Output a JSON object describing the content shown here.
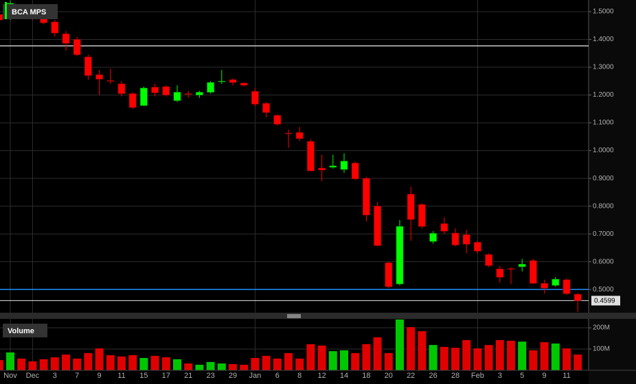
{
  "chart_data": {
    "type": "candlestick",
    "title": "BCA MPS",
    "categories": [
      null,
      "Nov",
      null,
      "Dec",
      null,
      "3",
      null,
      "7",
      null,
      "9",
      null,
      "11",
      null,
      "15",
      null,
      "17",
      null,
      "21",
      null,
      "23",
      null,
      "29",
      null,
      "Jan",
      null,
      "6",
      null,
      "8",
      null,
      "12",
      null,
      "14",
      null,
      "18",
      null,
      "20",
      null,
      "22",
      null,
      "26",
      null,
      "28",
      null,
      "Feb",
      null,
      "3",
      null,
      "5",
      null,
      "9",
      null,
      "11",
      null
    ],
    "open": [
      1.49,
      1.48,
      1.5,
      1.49,
      1.49,
      1.463,
      1.42,
      1.4,
      1.337,
      1.273,
      1.252,
      1.24,
      1.205,
      1.162,
      1.228,
      1.23,
      1.18,
      1.205,
      1.2,
      1.21,
      1.25,
      1.255,
      1.243,
      1.213,
      1.17,
      1.127,
      1.063,
      1.065,
      1.033,
      0.937,
      0.94,
      0.932,
      0.955,
      0.9,
      0.8,
      0.596,
      0.52,
      0.843,
      0.806,
      0.673,
      0.737,
      0.703,
      0.697,
      0.67,
      0.626,
      0.574,
      0.575,
      0.582,
      0.604,
      0.522,
      0.515,
      0.535,
      0.483
    ],
    "high": [
      1.5,
      1.54,
      1.51,
      1.5,
      1.5,
      1.47,
      1.43,
      1.41,
      1.345,
      1.29,
      1.295,
      1.25,
      1.21,
      1.23,
      1.24,
      1.235,
      1.235,
      1.215,
      1.215,
      1.25,
      1.29,
      1.26,
      1.245,
      1.225,
      1.175,
      1.13,
      1.075,
      1.085,
      1.04,
      0.985,
      0.985,
      0.99,
      0.96,
      0.905,
      0.815,
      0.6,
      0.75,
      0.87,
      0.81,
      0.71,
      0.76,
      0.72,
      0.715,
      0.675,
      0.63,
      0.585,
      0.58,
      0.61,
      0.61,
      0.535,
      0.545,
      0.54,
      0.487
    ],
    "low": [
      1.46,
      1.47,
      1.48,
      1.47,
      1.455,
      1.41,
      1.36,
      1.34,
      1.255,
      1.2,
      1.24,
      1.195,
      1.15,
      1.16,
      1.195,
      1.195,
      1.175,
      1.19,
      1.19,
      1.205,
      1.24,
      1.235,
      1.23,
      1.16,
      1.12,
      1.09,
      1.01,
      1.035,
      0.925,
      0.89,
      0.935,
      0.92,
      0.895,
      0.745,
      0.655,
      0.505,
      0.515,
      0.675,
      0.72,
      0.665,
      0.7,
      0.655,
      0.63,
      0.63,
      0.58,
      0.525,
      0.52,
      0.565,
      0.52,
      0.485,
      0.51,
      0.48,
      0.42
    ],
    "close": [
      1.47,
      1.53,
      1.49,
      1.48,
      1.46,
      1.423,
      1.386,
      1.345,
      1.27,
      1.257,
      1.25,
      1.205,
      1.155,
      1.225,
      1.208,
      1.2,
      1.21,
      1.203,
      1.21,
      1.245,
      1.25,
      1.245,
      1.235,
      1.167,
      1.137,
      1.095,
      1.062,
      1.043,
      0.927,
      0.93,
      0.945,
      0.962,
      0.898,
      0.768,
      0.658,
      0.51,
      0.727,
      0.752,
      0.727,
      0.702,
      0.71,
      0.66,
      0.663,
      0.638,
      0.586,
      0.544,
      0.573,
      0.591,
      0.522,
      0.505,
      0.537,
      0.485,
      0.4599
    ],
    "up_color": "#00ff00",
    "down_color": "#ff0000",
    "ylim": [
      0.419,
      1.542
    ],
    "yticks": [
      {
        "value": 0.5,
        "label": "0.5000"
      },
      {
        "value": 0.6,
        "label": "0.6000"
      },
      {
        "value": 0.7,
        "label": "0.7000"
      },
      {
        "value": 0.8,
        "label": "0.8000"
      },
      {
        "value": 0.9,
        "label": "0.9000"
      },
      {
        "value": 1.0,
        "label": "1.0000"
      },
      {
        "value": 1.1,
        "label": "1.1000"
      },
      {
        "value": 1.2,
        "label": "1.2000"
      },
      {
        "value": 1.3,
        "label": "1.3000"
      },
      {
        "value": 1.4,
        "label": "1.4000"
      },
      {
        "value": 1.5,
        "label": "1.5000"
      }
    ],
    "grid": true,
    "levels": [
      {
        "value": 1.377,
        "color": "#c8c8c8"
      },
      {
        "value": 0.5,
        "color": "#1e90ff"
      }
    ],
    "volume": {
      "label": "Volume",
      "values": [
        48000000,
        84000000,
        55000000,
        42000000,
        52000000,
        61000000,
        74000000,
        55000000,
        81000000,
        103000000,
        71000000,
        65000000,
        71000000,
        58000000,
        68000000,
        61000000,
        52000000,
        32000000,
        26000000,
        39000000,
        32000000,
        29000000,
        26000000,
        58000000,
        68000000,
        55000000,
        81000000,
        55000000,
        123000000,
        116000000,
        90000000,
        94000000,
        81000000,
        123000000,
        155000000,
        81000000,
        239000000,
        203000000,
        184000000,
        119000000,
        110000000,
        106000000,
        142000000,
        103000000,
        119000000,
        142000000,
        139000000,
        135000000,
        94000000,
        132000000,
        126000000,
        103000000,
        74000000
      ],
      "ylim": [
        0,
        242000000
      ],
      "yticks": [
        {
          "value": 100000000,
          "label": "100M"
        },
        {
          "value": 200000000,
          "label": "200M"
        }
      ]
    }
  }
}
